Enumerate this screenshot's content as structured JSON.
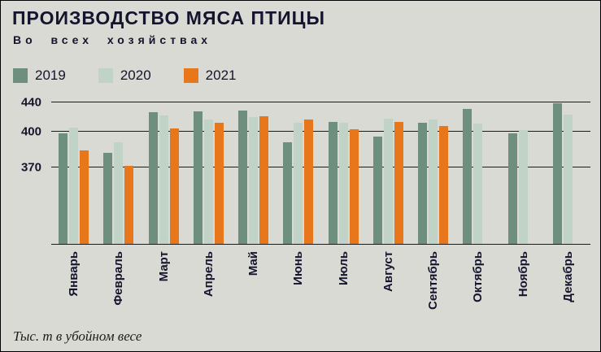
{
  "header": {
    "title": "ПРОИЗВОДСТВО МЯСА ПТИЦЫ",
    "subtitle": "Во всех хозяйствах"
  },
  "footer": {
    "caption": "Тыс. т в убойном весе"
  },
  "colors": {
    "background": "#dadad5",
    "series_2019": "#6e8f7d",
    "series_2020": "#c1d2c6",
    "series_2021": "#e8761a",
    "text": "#14142e",
    "gridline": "#1c1c1c"
  },
  "chart_data": {
    "type": "bar",
    "title": "ПРОИЗВОДСТВО МЯСА ПТИЦЫ",
    "subtitle": "Во всех хозяйствах",
    "units": "Тыс. т в убойном весе",
    "categories": [
      "Январь",
      "Февраль",
      "Март",
      "Апрель",
      "Май",
      "Июнь",
      "Июль",
      "Август",
      "Сентябрь",
      "Октябрь",
      "Ноябрь",
      "Декабрь"
    ],
    "series": [
      {
        "name": "2019",
        "color": "#6e8f7d",
        "values": [
          399,
          382,
          426,
          428,
          429,
          391,
          413,
          396,
          412,
          431,
          399,
          438
        ]
      },
      {
        "name": "2020",
        "color": "#c1d2c6",
        "values": [
          406,
          391,
          422,
          417,
          420,
          412,
          412,
          418,
          417,
          411,
          403,
          423
        ]
      },
      {
        "name": "2021",
        "color": "#e8761a",
        "values": [
          384,
          371,
          405,
          412,
          421,
          417,
          404,
          413,
          408,
          null,
          null,
          null
        ]
      }
    ],
    "yticks": [
      370,
      400,
      440
    ],
    "ylim": [
      332,
      445
    ],
    "grid": true,
    "legend_position": "top",
    "xlabel_rotation": 90
  }
}
